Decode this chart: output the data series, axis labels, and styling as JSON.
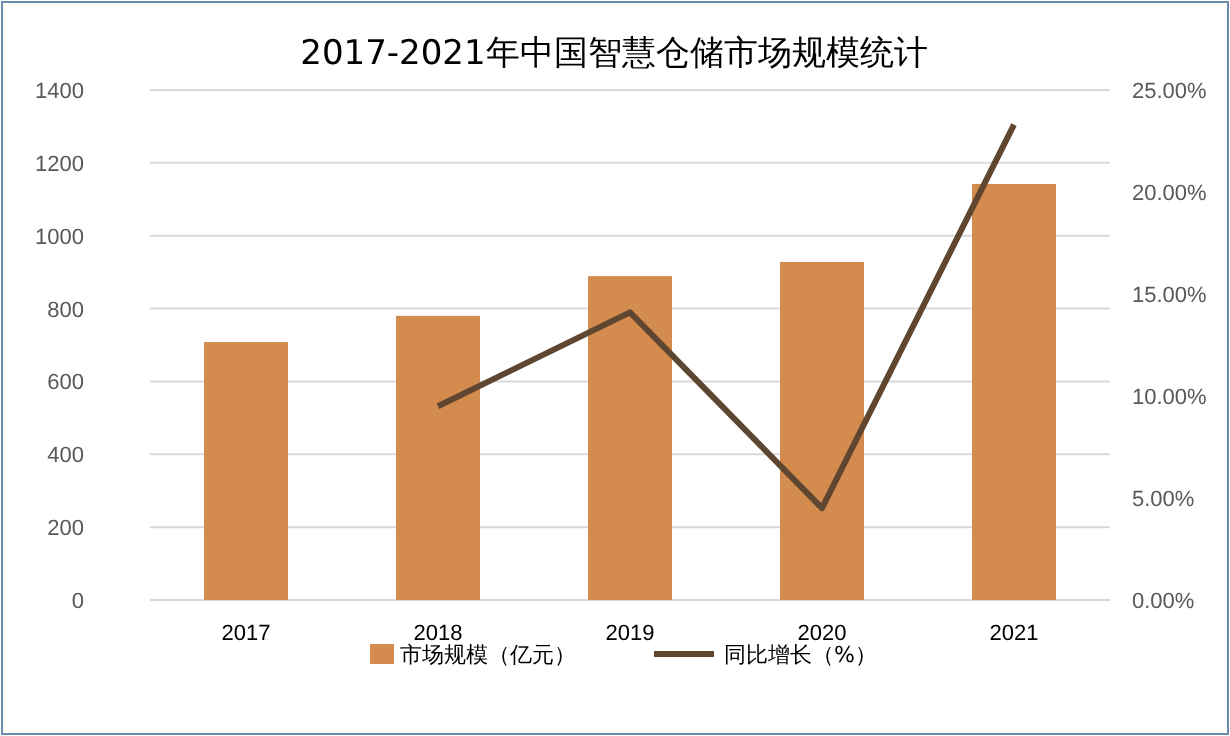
{
  "chart_data": {
    "type": "bar",
    "title": "2017-2021年中国智慧仓储市场规模统计",
    "categories": [
      "2017",
      "2018",
      "2019",
      "2020",
      "2021"
    ],
    "series": [
      {
        "name": "市场规模（亿元）",
        "color": "#d48b4e",
        "values": [
          708,
          780,
          889,
          928,
          1142
        ]
      },
      {
        "name": "同比增长（%）",
        "type": "line",
        "axis": "y2",
        "color": "#5e4630",
        "values": [
          null,
          9.5,
          14.1,
          4.5,
          23.3
        ]
      }
    ],
    "ylim": [
      0,
      1400
    ],
    "yticks": [
      0,
      200,
      400,
      600,
      800,
      1000,
      1200,
      1400
    ],
    "y2lim": [
      0,
      25
    ],
    "y2ticks": [
      {
        "value": 0,
        "label": "0.00%"
      },
      {
        "value": 5,
        "label": "5.00%"
      },
      {
        "value": 10,
        "label": "10.00%"
      },
      {
        "value": 15,
        "label": "15.00%"
      },
      {
        "value": 20,
        "label": "20.00%"
      },
      {
        "value": 25,
        "label": "25.00%"
      }
    ],
    "grid": "y",
    "legend": "bottom",
    "marker": "none",
    "line_style": "solid"
  }
}
